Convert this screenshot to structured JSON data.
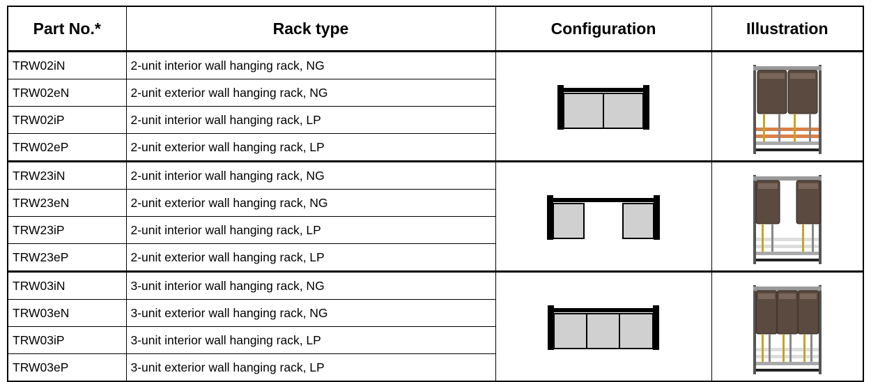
{
  "header": [
    "Part No.*",
    "Rack type",
    "Configuration",
    "Illustration"
  ],
  "groups": [
    {
      "rows": [
        {
          "part": "TRW02iN",
          "type": "2-unit interior wall hanging rack, NG"
        },
        {
          "part": "TRW02eN",
          "type": "2-unit exterior wall hanging rack, NG"
        },
        {
          "part": "TRW02iP",
          "type": "2-unit interior wall hanging rack, LP"
        },
        {
          "part": "TRW02eP",
          "type": "2-unit exterior wall hanging rack, LP"
        }
      ]
    },
    {
      "rows": [
        {
          "part": "TRW23iN",
          "type": "2-unit interior wall hanging rack, NG"
        },
        {
          "part": "TRW23eN",
          "type": "2-unit exterior wall hanging rack, NG"
        },
        {
          "part": "TRW23iP",
          "type": "2-unit interior wall hanging rack, LP"
        },
        {
          "part": "TRW23eP",
          "type": "2-unit exterior wall hanging rack, LP"
        }
      ]
    },
    {
      "rows": [
        {
          "part": "TRW03iN",
          "type": "3-unit interior wall hanging rack, NG"
        },
        {
          "part": "TRW03eN",
          "type": "3-unit exterior wall hanging rack, NG"
        },
        {
          "part": "TRW03iP",
          "type": "3-unit interior wall hanging rack, LP"
        },
        {
          "part": "TRW03eP",
          "type": "3-unit exterior wall hanging rack, LP"
        }
      ]
    }
  ]
}
